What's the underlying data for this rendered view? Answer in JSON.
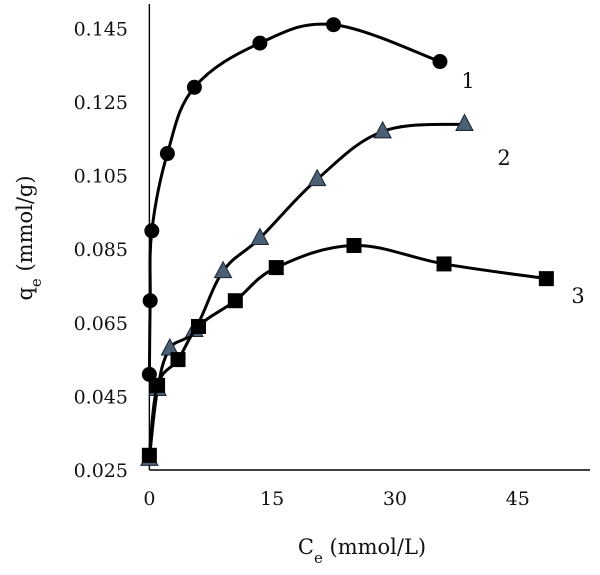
{
  "chart_data": {
    "type": "line",
    "title": "",
    "xlabel": {
      "main": "C",
      "sub": "e",
      "unit": " (mmol/L)"
    },
    "ylabel": {
      "main": "q",
      "sub": "e",
      "unit": " (mmol/g)"
    },
    "xlim": [
      -2,
      52
    ],
    "ylim": [
      0.025,
      0.15
    ],
    "x_ticks": [
      {
        "value": 0,
        "label": "0"
      },
      {
        "value": 15,
        "label": "15"
      },
      {
        "value": 30,
        "label": "30"
      },
      {
        "value": 45,
        "label": "45"
      }
    ],
    "y_ticks": [
      {
        "value": 0.025,
        "label": "0.025"
      },
      {
        "value": 0.045,
        "label": "0.045"
      },
      {
        "value": 0.065,
        "label": "0.065"
      },
      {
        "value": 0.085,
        "label": "0.085"
      },
      {
        "value": 0.105,
        "label": "0.105"
      },
      {
        "value": 0.125,
        "label": "0.125"
      },
      {
        "value": 0.145,
        "label": "0.145"
      }
    ],
    "grid": false,
    "series": [
      {
        "name": "1",
        "marker": "circle",
        "marker_color": "#000000",
        "points": [
          {
            "x": 0,
            "y": 0.051
          },
          {
            "x": 0.1,
            "y": 0.071
          },
          {
            "x": 0.3,
            "y": 0.09
          },
          {
            "x": 2.2,
            "y": 0.111
          },
          {
            "x": 5.5,
            "y": 0.129
          },
          {
            "x": 13.5,
            "y": 0.141
          },
          {
            "x": 22.5,
            "y": 0.146
          },
          {
            "x": 35.5,
            "y": 0.136
          }
        ]
      },
      {
        "name": "2",
        "marker": "triangle",
        "marker_color": "#4a5e74",
        "points": [
          {
            "x": 0,
            "y": 0.028
          },
          {
            "x": 1.0,
            "y": 0.047
          },
          {
            "x": 2.5,
            "y": 0.058
          },
          {
            "x": 5.5,
            "y": 0.063
          },
          {
            "x": 9.0,
            "y": 0.079
          },
          {
            "x": 13.5,
            "y": 0.088
          },
          {
            "x": 20.5,
            "y": 0.104
          },
          {
            "x": 28.5,
            "y": 0.117
          },
          {
            "x": 38.5,
            "y": 0.119
          }
        ]
      },
      {
        "name": "3",
        "marker": "square",
        "marker_color": "#000000",
        "points": [
          {
            "x": 0,
            "y": 0.029
          },
          {
            "x": 1.0,
            "y": 0.048
          },
          {
            "x": 3.5,
            "y": 0.055
          },
          {
            "x": 6.0,
            "y": 0.064
          },
          {
            "x": 10.5,
            "y": 0.071
          },
          {
            "x": 15.5,
            "y": 0.08
          },
          {
            "x": 25.0,
            "y": 0.086
          },
          {
            "x": 36.0,
            "y": 0.081
          },
          {
            "x": 48.5,
            "y": 0.077
          }
        ]
      }
    ]
  }
}
